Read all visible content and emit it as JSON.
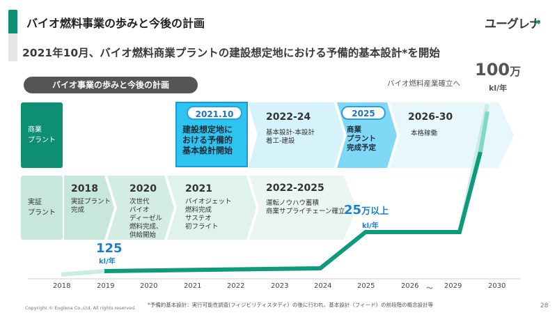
{
  "header": {
    "title": "バイオ燃料事業の歩みと今後の計画",
    "logo_text": "ユーグレナ",
    "logo_mark": "∞",
    "subtitle": "2021年10月、バイオ燃料商業プラントの建設想定地における予備的基本設計*を開始"
  },
  "section_pill": "バイオ事業の歩みと今後の計画",
  "target": {
    "label": "バイオ燃料産業確立へ",
    "num": "100",
    "man": "万",
    "unit": "kl/年"
  },
  "rows": {
    "commercial_line1": "商業",
    "commercial_line2": "プラント",
    "demo_line1": "実証",
    "demo_line2": "プラント"
  },
  "commercial": {
    "y2021": "2021.10",
    "y2021_l1": "建設想定地に",
    "y2021_l2": "おける予備的",
    "y2021_l3": "基本設計開始",
    "y2022": "2022-24",
    "y2022_l1": "基本設計-本設計",
    "y2022_l2": "着工-建設",
    "y2025": "2025",
    "y2025_l1": "商業",
    "y2025_l2": "プラント",
    "y2025_l3": "完成予定",
    "y2026": "2026-30",
    "y2026_l1": "本格稼働"
  },
  "demo": {
    "y2018": "2018",
    "y2018_l1": "実証プラント",
    "y2018_l2": "完成",
    "y2020": "2020",
    "y2020_l1": "次世代",
    "y2020_l2": "バイオ",
    "y2020_l3": "ディーゼル",
    "y2020_l4": "燃料完成、",
    "y2020_l5": "供給開始",
    "y2021": "2021",
    "y2021_l1": "バイオジェット",
    "y2021_l2": "燃料完成",
    "y2021_l3": "サステオ",
    "y2021_l4": "初フライト",
    "y2022": "2022-2025",
    "y2022_l1": "運転ノウハウ蓄積",
    "y2022_l2": "商業サプライチェーン確立"
  },
  "capacity_small": {
    "num": "125",
    "unit": "kl/年"
  },
  "capacity_mid": {
    "num": "25",
    "man": "万以上",
    "unit": "kl/年"
  },
  "axis": {
    "years": [
      "2018",
      "2019",
      "2020",
      "2021",
      "2022",
      "2023",
      "2024",
      "2025",
      "2026",
      "2029",
      "2030"
    ],
    "tilde": "〜"
  },
  "footnote": "*予備的基本設計：実行可能性調査(フィジビリティスタディ）の後に行われ、基本設計（フィード）の前段階の概念設計等",
  "copyright": "Copyright © Euglena Co.,Ltd. All rights reserved.",
  "page_number": "28",
  "colors": {
    "green": "#0e8f74",
    "blue": "#2fc4ef",
    "light_blue": "#d6f3fb",
    "light_green": "#dcefe9"
  }
}
